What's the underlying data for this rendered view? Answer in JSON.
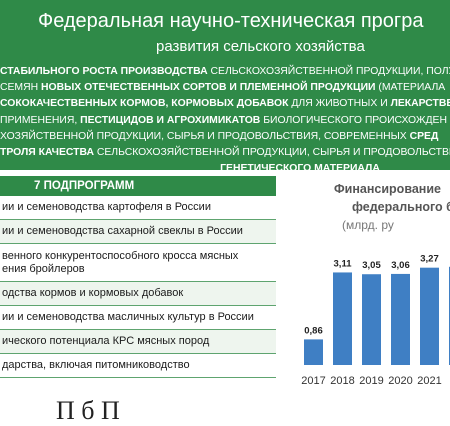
{
  "header": {
    "title1": "Федеральная научно-техническая програ",
    "title2": "развития сельского хозяйства",
    "lines": [
      [
        [
          "b",
          "стабильного роста производства "
        ],
        [
          "n",
          "сельскохозяйственной продукции, полу"
        ]
      ],
      [
        [
          "n",
          "семян "
        ],
        [
          "b",
          "новых отечественных сортов и племенной продукции "
        ],
        [
          "n",
          "(материала"
        ]
      ],
      [
        [
          "b",
          "сококачественных кормов, кормовых добавок "
        ],
        [
          "n",
          "для животных и "
        ],
        [
          "b",
          "лекарстве"
        ]
      ],
      [
        [
          "n",
          "применения, "
        ],
        [
          "b",
          "пестицидов и агрохимикатов "
        ],
        [
          "n",
          "биологического происхожден"
        ]
      ],
      [
        [
          "n",
          "хозяйственной продукции, сырья и продовольствия, современных "
        ],
        [
          "b",
          "сред"
        ]
      ],
      [
        [
          "b",
          "троля качества "
        ],
        [
          "n",
          "сельскохозяйственной продукции, сырья и продовольстви"
        ]
      ],
      [
        [
          "b",
          "генетического материала"
        ]
      ]
    ]
  },
  "table": {
    "header": "7 ПОДПРОГРАММ",
    "rows": [
      {
        "text": "ии и семеноводства картофеля в России",
        "h": 24
      },
      {
        "text": "ии и семеноводства сахарной свеклы в России",
        "h": 24
      },
      {
        "text": "венного конкурентоспособного кросса мясных\nения бройлеров",
        "h": 38
      },
      {
        "text": "одства кормов и кормовых добавок",
        "h": 24
      },
      {
        "text": "ии и семеноводства масличных культур в России",
        "h": 24
      },
      {
        "text": "ического потенциала КРС мясных пород",
        "h": 24
      },
      {
        "text": "дарства, включая питомниководство",
        "h": 24
      }
    ]
  },
  "chart_data": {
    "type": "bar",
    "title": "Финансирование\nфедерального б",
    "subtitle": "(млрд. ру",
    "categories": [
      "2017",
      "2018",
      "2019",
      "2020",
      "2021",
      "2"
    ],
    "values": [
      0.86,
      3.11,
      3.05,
      3.06,
      3.27,
      3.3
    ],
    "labels": [
      "0,86",
      "3,11",
      "3,05",
      "3,06",
      "3,27",
      ""
    ],
    "ylim": [
      0,
      4.2
    ],
    "color": "#3f7fc4"
  },
  "caption": "П                 б                       П"
}
